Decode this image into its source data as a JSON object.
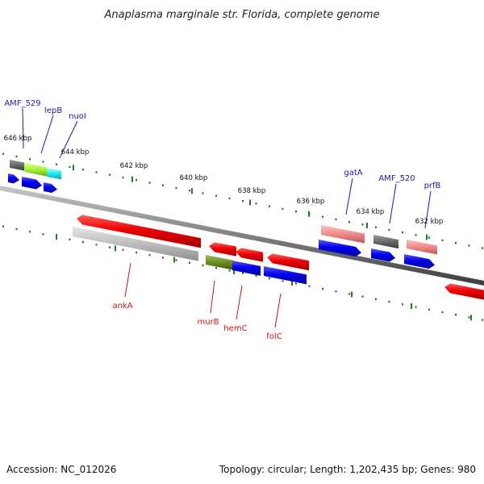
{
  "title": "Anaplasma marginale str. Florida, complete genome",
  "footer": {
    "accession": "Accession: NC_012026",
    "summary": "Topology: circular; Length: 1,202,435 bp; Genes: 980"
  },
  "colors": {
    "forward_label": "#1a1aa6",
    "reverse_label": "#cc1111",
    "backbone": "#8a8a8a",
    "tick": "#1e7a1e"
  },
  "ticks": [
    {
      "label": "646 kbp"
    },
    {
      "label": "644 kbp"
    },
    {
      "label": "642 kbp"
    },
    {
      "label": "640 kbp"
    },
    {
      "label": "638 kbp"
    },
    {
      "label": "636 kbp"
    },
    {
      "label": "634 kbp"
    },
    {
      "label": "632 kbp"
    }
  ],
  "forward_labels": [
    {
      "text": "AMF_529"
    },
    {
      "text": "lepB"
    },
    {
      "text": "nuoI"
    },
    {
      "text": "gatA"
    },
    {
      "text": "AMF_520"
    },
    {
      "text": "prfB"
    }
  ],
  "reverse_labels": [
    {
      "text": "ankA"
    },
    {
      "text": "murB"
    },
    {
      "text": "hemC"
    },
    {
      "text": "folC"
    }
  ]
}
